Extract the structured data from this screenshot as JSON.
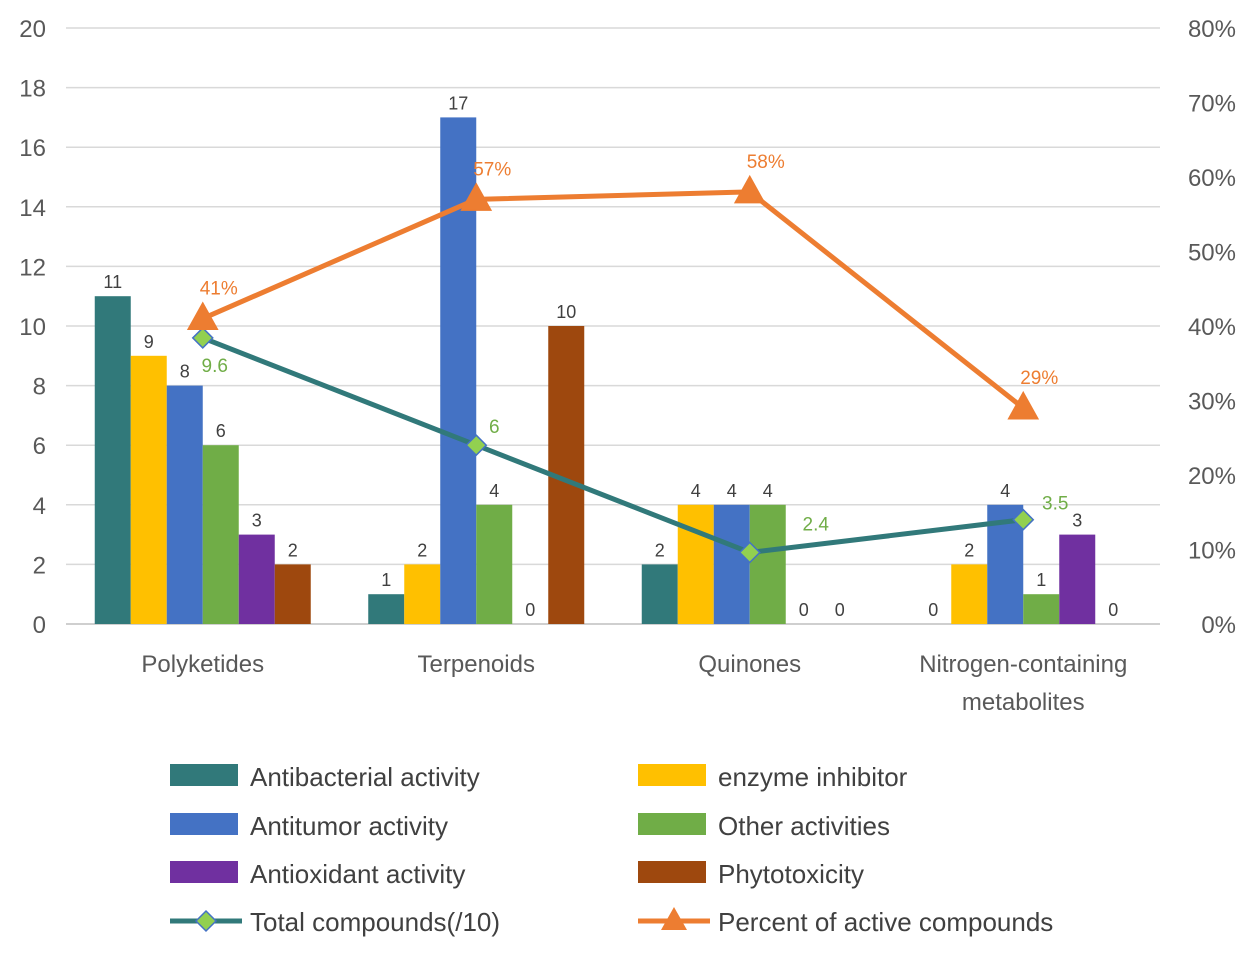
{
  "chart_data": {
    "type": "bar",
    "categories": [
      "Polyketides",
      "Terpenoids",
      "Quinones",
      "Nitrogen-containing metabolites"
    ],
    "categories_display": [
      [
        "Polyketides"
      ],
      [
        "Terpenoids"
      ],
      [
        "Quinones"
      ],
      [
        "Nitrogen-containing",
        "metabolites"
      ]
    ],
    "series": [
      {
        "name": "Antibacterial activity",
        "values": [
          11,
          1,
          2,
          0
        ],
        "color": "#31797A"
      },
      {
        "name": "enzyme inhibitor",
        "values": [
          9,
          2,
          4,
          2
        ],
        "color": "#FFC000"
      },
      {
        "name": "Antitumor activity",
        "values": [
          8,
          17,
          4,
          4
        ],
        "color": "#4472C4"
      },
      {
        "name": "Other activities",
        "values": [
          6,
          4,
          4,
          1
        ],
        "color": "#70AD47"
      },
      {
        "name": "Antioxidant activity",
        "values": [
          3,
          0,
          0,
          3
        ],
        "color": "#7030A0"
      },
      {
        "name": "Phytotoxicity",
        "values": [
          2,
          10,
          0,
          0
        ],
        "color": "#9E480E"
      }
    ],
    "line_series": [
      {
        "name": "Total compounds(/10)",
        "values": [
          9.6,
          6,
          2.4,
          3.5
        ],
        "labels": [
          "9.6",
          "6",
          "2.4",
          "3.5"
        ],
        "axis": "left",
        "color": "#31797A",
        "marker": "diamond",
        "marker_color": "#92D050",
        "label_color": "#70AD47"
      },
      {
        "name": "Percent of active compounds",
        "values": [
          0.41,
          0.57,
          0.58,
          0.29
        ],
        "labels": [
          "41%",
          "57%",
          "58%",
          "29%"
        ],
        "axis": "right",
        "color": "#ED7D31",
        "marker": "triangle",
        "label_color": "#ED7D31"
      }
    ],
    "legend_order": [
      "Antibacterial activity",
      "enzyme inhibitor",
      "Antitumor activity",
      "Other activities",
      "Antioxidant activity",
      "Phytotoxicity",
      "Total compounds(/10)",
      "Percent of active compounds"
    ],
    "y_left": {
      "min": 0,
      "max": 20,
      "step": 2,
      "ticks": [
        "0",
        "2",
        "4",
        "6",
        "8",
        "10",
        "12",
        "14",
        "16",
        "18",
        "20"
      ]
    },
    "y_right": {
      "min": 0,
      "max": 0.8,
      "step": 0.1,
      "ticks": [
        "0%",
        "10%",
        "20%",
        "30%",
        "40%",
        "50%",
        "60%",
        "70%",
        "80%"
      ]
    },
    "grid": true,
    "legend_position": "bottom",
    "title": "",
    "xlabel": "",
    "ylabel": ""
  }
}
